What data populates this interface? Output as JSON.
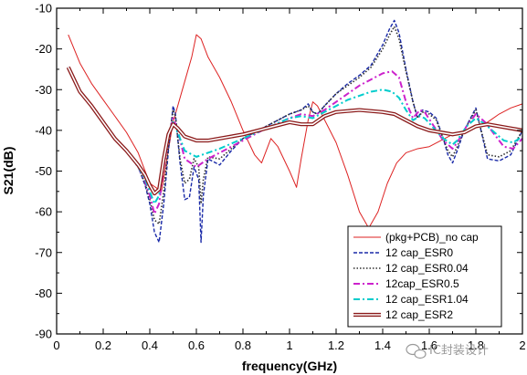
{
  "chart_data": {
    "type": "line",
    "xlabel": "frequency(GHz)",
    "ylabel": "S21(dB)",
    "xlim": [
      0,
      2
    ],
    "ylim": [
      -90,
      -10
    ],
    "xticks": [
      0,
      0.2,
      0.4,
      0.6,
      0.8,
      1,
      1.2,
      1.4,
      1.6,
      1.8,
      2
    ],
    "xtick_labels": [
      "0",
      "0.2",
      "0.4",
      "0.6",
      "0.8",
      "1",
      "1.2",
      "1.4",
      "1.6",
      "1.8",
      "2"
    ],
    "yticks": [
      -90,
      -80,
      -70,
      -60,
      -50,
      -40,
      -30,
      -20,
      -10
    ],
    "ytick_labels": [
      "-90",
      "-80",
      "-70",
      "-60",
      "-50",
      "-40",
      "-30",
      "-20",
      "-10"
    ],
    "grid": false,
    "legend_position": "bottom-right",
    "series": [
      {
        "name": "(pkg+PCB)_no cap",
        "color": "#dd2222",
        "style": "solid",
        "x": [
          0.05,
          0.1,
          0.15,
          0.2,
          0.25,
          0.3,
          0.35,
          0.4,
          0.45,
          0.5,
          0.55,
          0.58,
          0.6,
          0.62,
          0.65,
          0.7,
          0.75,
          0.8,
          0.85,
          0.88,
          0.92,
          0.95,
          1.0,
          1.03,
          1.05,
          1.08,
          1.1,
          1.12,
          1.2,
          1.25,
          1.3,
          1.34,
          1.38,
          1.42,
          1.46,
          1.5,
          1.55,
          1.6,
          1.7,
          1.75,
          1.8,
          1.85,
          1.9,
          1.95,
          2.0
        ],
        "y": [
          -16.5,
          -23.5,
          -28.5,
          -32.5,
          -36.5,
          -40.5,
          -45.5,
          -53,
          -55,
          -38,
          -28,
          -22,
          -16.5,
          -17.5,
          -22,
          -27,
          -33,
          -40,
          -46,
          -48,
          -42,
          -44,
          -50,
          -54,
          -47,
          -37.5,
          -33,
          -34,
          -43,
          -51,
          -60,
          -64,
          -60,
          -53,
          -48,
          -45.5,
          -44.5,
          -44,
          -41,
          -40.5,
          -39,
          -38,
          -36,
          -34.5,
          -33.5
        ]
      },
      {
        "name": "12 cap_ESR0",
        "color": "#1a2aa8",
        "style": "dash",
        "x": [
          0.05,
          0.1,
          0.15,
          0.2,
          0.25,
          0.3,
          0.35,
          0.38,
          0.4,
          0.42,
          0.44,
          0.46,
          0.48,
          0.5,
          0.51,
          0.53,
          0.55,
          0.57,
          0.59,
          0.61,
          0.62,
          0.63,
          0.65,
          0.7,
          0.75,
          0.8,
          0.9,
          1.0,
          1.05,
          1.08,
          1.1,
          1.12,
          1.15,
          1.2,
          1.25,
          1.3,
          1.35,
          1.4,
          1.43,
          1.45,
          1.47,
          1.5,
          1.53,
          1.55,
          1.57,
          1.6,
          1.63,
          1.66,
          1.68,
          1.7,
          1.72,
          1.75,
          1.8,
          1.85,
          1.9,
          1.95,
          2.0
        ],
        "y": [
          -24.5,
          -30.5,
          -34,
          -38,
          -42,
          -45,
          -49,
          -53.5,
          -58,
          -65,
          -67.5,
          -58,
          -45,
          -34,
          -36,
          -48,
          -57,
          -56.5,
          -49,
          -52,
          -67.5,
          -56,
          -47,
          -48.5,
          -45,
          -42,
          -39,
          -36,
          -35,
          -33.5,
          -35.5,
          -36,
          -34,
          -31,
          -28.5,
          -26.5,
          -24,
          -19,
          -15,
          -13,
          -16,
          -25,
          -33,
          -37,
          -35,
          -35.5,
          -37,
          -42,
          -46,
          -48,
          -45,
          -40,
          -34.5,
          -47,
          -47.5,
          -46,
          -40
        ]
      },
      {
        "name": "12 cap_ESR0.04",
        "color": "#303030",
        "style": "dot",
        "x": [
          0.05,
          0.1,
          0.15,
          0.2,
          0.25,
          0.3,
          0.35,
          0.38,
          0.4,
          0.42,
          0.44,
          0.46,
          0.48,
          0.5,
          0.51,
          0.53,
          0.55,
          0.57,
          0.59,
          0.61,
          0.62,
          0.63,
          0.65,
          0.7,
          0.75,
          0.8,
          0.9,
          1.0,
          1.05,
          1.08,
          1.1,
          1.12,
          1.15,
          1.2,
          1.25,
          1.3,
          1.35,
          1.4,
          1.43,
          1.45,
          1.47,
          1.5,
          1.53,
          1.55,
          1.57,
          1.6,
          1.63,
          1.66,
          1.68,
          1.7,
          1.72,
          1.75,
          1.8,
          1.85,
          1.9,
          1.95,
          2.0
        ],
        "y": [
          -24.5,
          -30.5,
          -34,
          -38,
          -42,
          -45,
          -49,
          -53,
          -57,
          -62,
          -63,
          -55,
          -44,
          -35,
          -36.5,
          -47,
          -53,
          -52,
          -47,
          -49,
          -58,
          -52,
          -46.5,
          -47,
          -44.5,
          -42,
          -39,
          -36,
          -35,
          -34,
          -35.5,
          -36,
          -34,
          -31,
          -29,
          -27,
          -24.5,
          -20,
          -16.5,
          -14.5,
          -17.5,
          -25.5,
          -33,
          -37,
          -35.5,
          -36,
          -37.5,
          -42,
          -45,
          -46.5,
          -44,
          -40,
          -35,
          -46,
          -46.5,
          -45,
          -40
        ]
      },
      {
        "name": "12cap_ESR0.5",
        "color": "#cc22cc",
        "style": "dashdot",
        "x": [
          0.05,
          0.1,
          0.15,
          0.2,
          0.25,
          0.3,
          0.35,
          0.38,
          0.4,
          0.42,
          0.44,
          0.46,
          0.48,
          0.5,
          0.52,
          0.55,
          0.6,
          0.65,
          0.7,
          0.8,
          0.9,
          1.0,
          1.05,
          1.1,
          1.15,
          1.2,
          1.25,
          1.3,
          1.35,
          1.4,
          1.44,
          1.47,
          1.5,
          1.53,
          1.56,
          1.58,
          1.62,
          1.66,
          1.7,
          1.72,
          1.76,
          1.8,
          1.84,
          1.88,
          1.92,
          1.96,
          2.0
        ],
        "y": [
          -24.5,
          -30.5,
          -34,
          -38,
          -42,
          -45,
          -49,
          -52.5,
          -56,
          -60.5,
          -58,
          -49,
          -42,
          -37,
          -40,
          -47,
          -49,
          -47,
          -45.5,
          -42.5,
          -39.5,
          -37,
          -36,
          -36.5,
          -35,
          -33,
          -31,
          -29,
          -27.5,
          -26,
          -25.5,
          -27,
          -33,
          -37,
          -35,
          -35.5,
          -39,
          -42.5,
          -44.5,
          -43,
          -39,
          -36,
          -38,
          -41,
          -44,
          -44.5,
          -42
        ]
      },
      {
        "name": "12 cap_ESR1.04",
        "color": "#00cccc",
        "style": "dashdot",
        "x": [
          0.05,
          0.1,
          0.15,
          0.2,
          0.25,
          0.3,
          0.35,
          0.38,
          0.4,
          0.42,
          0.44,
          0.46,
          0.48,
          0.5,
          0.52,
          0.55,
          0.6,
          0.65,
          0.7,
          0.8,
          0.9,
          1.0,
          1.05,
          1.1,
          1.15,
          1.2,
          1.25,
          1.3,
          1.35,
          1.4,
          1.44,
          1.47,
          1.5,
          1.53,
          1.56,
          1.58,
          1.62,
          1.66,
          1.7,
          1.72,
          1.76,
          1.8,
          1.84,
          1.88,
          1.92,
          1.96,
          2.0
        ],
        "y": [
          -24.5,
          -30.5,
          -34,
          -38,
          -42,
          -45,
          -49,
          -52,
          -55,
          -58,
          -56,
          -48,
          -41.5,
          -38,
          -40.5,
          -45,
          -46.5,
          -45.5,
          -44.5,
          -42,
          -39.5,
          -37,
          -36.5,
          -37,
          -35.5,
          -34,
          -32.5,
          -31.5,
          -30.5,
          -30,
          -30.5,
          -32,
          -35,
          -37.5,
          -36.5,
          -37,
          -39.5,
          -42,
          -43.5,
          -42.5,
          -39,
          -37,
          -38.5,
          -40.5,
          -42.5,
          -43,
          -41.5
        ]
      },
      {
        "name": "12 cap_ESR2",
        "color": "#8b1a1a",
        "style": "triple",
        "x": [
          0.05,
          0.1,
          0.15,
          0.2,
          0.25,
          0.3,
          0.35,
          0.38,
          0.4,
          0.42,
          0.44,
          0.46,
          0.48,
          0.5,
          0.52,
          0.55,
          0.6,
          0.65,
          0.7,
          0.8,
          0.9,
          1.0,
          1.05,
          1.1,
          1.15,
          1.2,
          1.3,
          1.4,
          1.45,
          1.5,
          1.55,
          1.6,
          1.65,
          1.7,
          1.75,
          1.8,
          1.85,
          1.9,
          1.95,
          2.0
        ],
        "y": [
          -24.5,
          -30.5,
          -34,
          -38,
          -42,
          -45,
          -48.5,
          -51,
          -53.5,
          -55.5,
          -54.5,
          -47,
          -41,
          -38.5,
          -39.5,
          -41.5,
          -42.5,
          -42.5,
          -42,
          -41,
          -39.5,
          -38,
          -38.5,
          -38.5,
          -36.5,
          -35.5,
          -35,
          -35.5,
          -36,
          -37.5,
          -39,
          -40,
          -40.5,
          -41,
          -40.5,
          -39,
          -38.5,
          -39,
          -39.5,
          -40
        ]
      }
    ]
  },
  "watermark": {
    "icon": "wechat-icon",
    "text": "IC封装设计"
  }
}
